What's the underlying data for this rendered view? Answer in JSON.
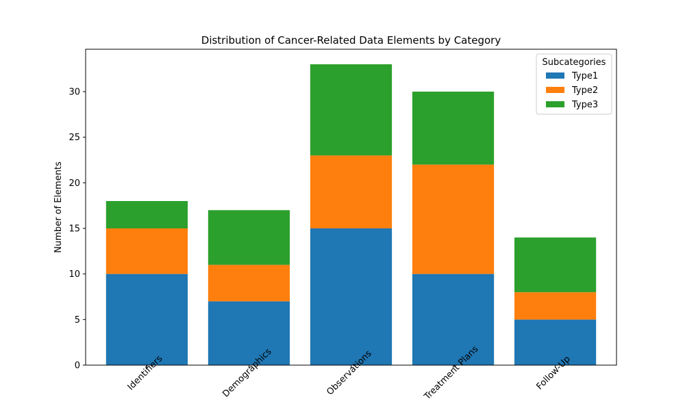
{
  "chart_data": {
    "type": "bar",
    "stacked": true,
    "title": "Distribution of Cancer-Related Data Elements by Category",
    "xlabel": "",
    "ylabel": "Number of Elements",
    "categories": [
      "Identifiers",
      "Demographics",
      "Observations",
      "Treatment Plans",
      "Follow-Up"
    ],
    "series": [
      {
        "name": "Type1",
        "color": "#1f77b4",
        "values": [
          10,
          7,
          15,
          10,
          5
        ]
      },
      {
        "name": "Type2",
        "color": "#ff7f0e",
        "values": [
          5,
          4,
          8,
          12,
          3
        ]
      },
      {
        "name": "Type3",
        "color": "#2ca02c",
        "values": [
          3,
          6,
          10,
          8,
          6
        ]
      }
    ],
    "ylim": [
      0,
      34.65
    ],
    "yticks": [
      0,
      5,
      10,
      15,
      20,
      25,
      30
    ],
    "grid": false,
    "legend": {
      "title": "Subcategories",
      "placement": "top-right"
    }
  }
}
